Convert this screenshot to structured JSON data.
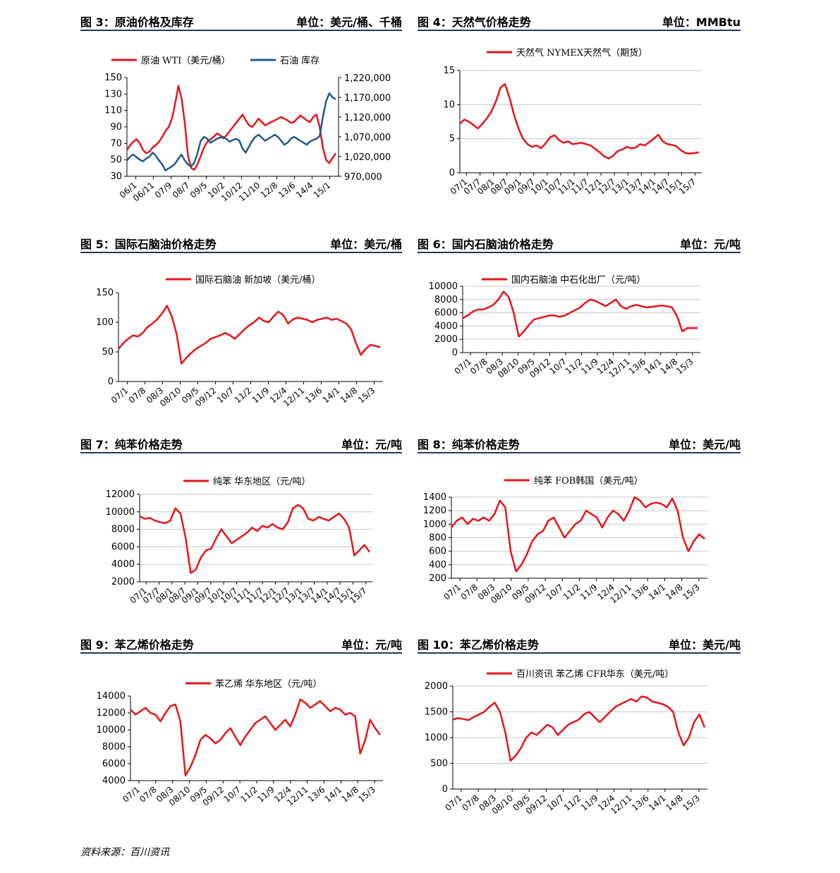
{
  "source": "资料来源：百川资讯",
  "colors": {
    "red": "#e8141a",
    "blue": "#1f5a8a",
    "grid": "#c8c8c8",
    "rule": "#1f3b5a"
  },
  "charts": [
    {
      "id": "c3",
      "fig": "图 3：原油价格及库存",
      "unit": "单位：美元/桶、千桶",
      "chart_data": {
        "type": "line",
        "legend": [
          "原油 WTI（美元/桶）",
          "石油 库存"
        ],
        "left_axis": {
          "min": 30,
          "max": 150,
          "ticks": [
            "30",
            "50",
            "70",
            "90",
            "110",
            "130",
            "150"
          ]
        },
        "right_axis": {
          "min": 970000,
          "max": 1220000,
          "ticks": [
            "970,000",
            "1,020,000",
            "1,070,000",
            "1,120,000",
            "1,170,000",
            "1,220,000"
          ]
        },
        "x_ticks": [
          "06/1",
          "06/11",
          "07/9",
          "08/7",
          "09/5",
          "10/2",
          "10/12",
          "11/10",
          "12/8",
          "13/6",
          "14/4",
          "15/1"
        ],
        "series": [
          {
            "name": "原油 WTI",
            "color": "red",
            "axis": "left",
            "values": [
              62,
              68,
              72,
              75,
              70,
              62,
              58,
              60,
              65,
              68,
              72,
              78,
              85,
              90,
              100,
              118,
              140,
              125,
              95,
              55,
              40,
              38,
              45,
              55,
              65,
              72,
              75,
              78,
              82,
              80,
              76,
              80,
              85,
              90,
              95,
              100,
              105,
              98,
              92,
              90,
              95,
              100,
              96,
              92,
              94,
              96,
              98,
              100,
              102,
              100,
              98,
              95,
              96,
              100,
              104,
              101,
              98,
              96,
              102,
              105,
              90,
              65,
              50,
              46,
              52,
              58
            ]
          },
          {
            "name": "石油 库存",
            "color": "blue",
            "axis": "right",
            "values": [
              1010000,
              1020000,
              1025000,
              1018000,
              1012000,
              1008000,
              1015000,
              1020000,
              1030000,
              1022000,
              1010000,
              1000000,
              985000,
              990000,
              995000,
              1002000,
              1015000,
              1025000,
              1010000,
              1000000,
              995000,
              1005000,
              1030000,
              1060000,
              1070000,
              1065000,
              1055000,
              1060000,
              1065000,
              1068000,
              1070000,
              1064000,
              1058000,
              1062000,
              1065000,
              1060000,
              1040000,
              1030000,
              1045000,
              1060000,
              1070000,
              1075000,
              1068000,
              1060000,
              1065000,
              1070000,
              1075000,
              1070000,
              1060000,
              1050000,
              1055000,
              1065000,
              1070000,
              1065000,
              1060000,
              1055000,
              1050000,
              1058000,
              1062000,
              1065000,
              1072000,
              1120000,
              1160000,
              1180000,
              1170000,
              1165000
            ]
          }
        ]
      }
    },
    {
      "id": "c4",
      "fig": "图 4：天然气价格走势",
      "unit": "单位：MMBtu",
      "chart_data": {
        "type": "line",
        "legend": [
          "天然气 NYMEX天然气（期货）"
        ],
        "left_axis": {
          "min": 0,
          "max": 15,
          "ticks": [
            "0",
            "5",
            "10",
            "15"
          ]
        },
        "x_ticks": [
          "07/1",
          "07/7",
          "08/1",
          "08/7",
          "09/1",
          "09/7",
          "10/1",
          "10/7",
          "11/1",
          "11/7",
          "12/1",
          "12/7",
          "13/1",
          "13/7",
          "14/1",
          "14/7",
          "15/1",
          "15/7"
        ],
        "series": [
          {
            "name": "天然气",
            "color": "red",
            "axis": "left",
            "values": [
              7.2,
              7.8,
              7.5,
              7.0,
              6.5,
              7.2,
              8.0,
              9.0,
              10.5,
              12.5,
              13.0,
              11.0,
              8.5,
              6.5,
              5.0,
              4.2,
              3.8,
              4.0,
              3.6,
              4.3,
              5.2,
              5.5,
              4.8,
              4.4,
              4.6,
              4.2,
              4.3,
              4.4,
              4.2,
              4.0,
              3.5,
              3.0,
              2.4,
              2.1,
              2.5,
              3.2,
              3.4,
              3.8,
              3.6,
              3.7,
              4.2,
              4.0,
              4.5,
              5.0,
              5.6,
              4.6,
              4.2,
              4.1,
              3.9,
              3.3,
              2.9,
              2.8,
              2.9,
              3.0
            ]
          }
        ]
      }
    },
    {
      "id": "c5",
      "fig": "图 5：国际石脑油价格走势",
      "unit": "单位：美元/桶",
      "chart_data": {
        "type": "line",
        "legend": [
          "国际石脑油 新加坡（美元/桶）"
        ],
        "left_axis": {
          "min": 0,
          "max": 150,
          "ticks": [
            "0",
            "50",
            "100",
            "150"
          ]
        },
        "x_ticks": [
          "07/1",
          "07/8",
          "08/3",
          "08/10",
          "09/5",
          "09/12",
          "10/7",
          "11/2",
          "11/9",
          "12/4",
          "12/11",
          "13/6",
          "14/1",
          "14/8",
          "15/3"
        ],
        "series": [
          {
            "name": "国际石脑油",
            "color": "red",
            "axis": "left",
            "values": [
              55,
              65,
              72,
              78,
              76,
              82,
              92,
              98,
              105,
              115,
              128,
              110,
              80,
              30,
              40,
              48,
              55,
              60,
              65,
              72,
              75,
              78,
              82,
              78,
              72,
              80,
              88,
              95,
              100,
              108,
              102,
              100,
              110,
              118,
              112,
              98,
              105,
              108,
              106,
              104,
              100,
              104,
              106,
              108,
              104,
              106,
              102,
              98,
              88,
              65,
              45,
              55,
              62,
              60,
              58
            ]
          }
        ]
      }
    },
    {
      "id": "c6",
      "fig": "图 6：国内石脑油价格走势",
      "unit": "单位：元/吨",
      "chart_data": {
        "type": "line",
        "legend": [
          "国内石脑油 中石化出厂（元/吨）"
        ],
        "left_axis": {
          "min": 0,
          "max": 10000,
          "ticks": [
            "0",
            "2000",
            "4000",
            "6000",
            "8000",
            "10000"
          ]
        },
        "x_ticks": [
          "07/1",
          "07/8",
          "08/3",
          "08/10",
          "09/5",
          "09/12",
          "10/7",
          "11/2",
          "11/9",
          "12/4",
          "12/11",
          "13/6",
          "14/1",
          "14/8",
          "15/3"
        ],
        "series": [
          {
            "name": "国内石脑油",
            "color": "red",
            "axis": "left",
            "values": [
              5200,
              5600,
              6200,
              6500,
              6500,
              6800,
              7200,
              8000,
              9200,
              8400,
              6000,
              2400,
              3200,
              4200,
              5000,
              5200,
              5400,
              5600,
              5600,
              5400,
              5600,
              6000,
              6400,
              6800,
              7500,
              8000,
              7800,
              7400,
              7000,
              7500,
              8000,
              7000,
              6600,
              7000,
              7200,
              7000,
              6800,
              6900,
              7000,
              7100,
              7000,
              6800,
              5500,
              3200,
              3700,
              3700,
              3700
            ]
          }
        ]
      }
    },
    {
      "id": "c7",
      "fig": "图 7：纯苯价格走势",
      "unit": "单位：元/吨",
      "chart_data": {
        "type": "line",
        "legend": [
          "纯苯 华东地区（元/吨）"
        ],
        "left_axis": {
          "min": 2000,
          "max": 12000,
          "ticks": [
            "2000",
            "4000",
            "6000",
            "8000",
            "10000",
            "12000"
          ]
        },
        "x_ticks": [
          "07/1",
          "07/7",
          "08/1",
          "08/7",
          "09/1",
          "09/7",
          "10/1",
          "10/7",
          "11/1",
          "11/7",
          "12/1",
          "12/7",
          "13/1",
          "13/7",
          "14/1",
          "14/7",
          "15/1",
          "15/7"
        ],
        "series": [
          {
            "name": "纯苯",
            "color": "red",
            "axis": "left",
            "values": [
              9500,
              9200,
              9300,
              9000,
              8800,
              8700,
              9000,
              10400,
              9800,
              7000,
              3000,
              3400,
              4800,
              5600,
              5800,
              7000,
              8000,
              7200,
              6400,
              6800,
              7200,
              7600,
              8200,
              7800,
              8400,
              8200,
              8600,
              8200,
              8000,
              8800,
              10400,
              10800,
              10400,
              9200,
              9000,
              9400,
              9200,
              9000,
              9400,
              9800,
              9200,
              8200,
              5000,
              5600,
              6200,
              5400
            ]
          }
        ]
      }
    },
    {
      "id": "c8",
      "fig": "图 8：纯苯价格走势",
      "unit": "单位：美元/吨",
      "chart_data": {
        "type": "line",
        "legend": [
          "纯苯 FOB韩国（美元/吨）"
        ],
        "left_axis": {
          "min": 200,
          "max": 1400,
          "ticks": [
            "200",
            "400",
            "600",
            "800",
            "1000",
            "1200",
            "1400"
          ]
        },
        "x_ticks": [
          "07/1",
          "07/8",
          "08/3",
          "08/10",
          "09/5",
          "09/12",
          "10/7",
          "11/2",
          "11/9",
          "12/4",
          "12/11",
          "13/6",
          "14/1",
          "14/8",
          "15/3"
        ],
        "series": [
          {
            "name": "纯苯 FOB",
            "color": "red",
            "axis": "left",
            "values": [
              950,
              1050,
              1100,
              1000,
              1080,
              1050,
              1100,
              1050,
              1150,
              1350,
              1250,
              600,
              300,
              400,
              550,
              750,
              850,
              900,
              1050,
              1100,
              950,
              800,
              900,
              1000,
              1050,
              1200,
              1150,
              1100,
              950,
              1100,
              1200,
              1150,
              1050,
              1200,
              1400,
              1350,
              1250,
              1300,
              1320,
              1300,
              1250,
              1380,
              1200,
              800,
              600,
              750,
              850,
              780
            ]
          }
        ]
      }
    },
    {
      "id": "c9",
      "fig": "图 9：苯乙烯价格走势",
      "unit": "单位：元/吨",
      "chart_data": {
        "type": "line",
        "legend": [
          "苯乙烯 华东地区（元/吨）"
        ],
        "left_axis": {
          "min": 4000,
          "max": 14000,
          "ticks": [
            "4000",
            "6000",
            "8000",
            "10000",
            "12000",
            "14000"
          ]
        },
        "x_ticks": [
          "07/1",
          "07/8",
          "08/3",
          "08/10",
          "09/5",
          "09/12",
          "10/7",
          "11/2",
          "11/9",
          "12/4",
          "12/11",
          "13/6",
          "14/1",
          "14/8",
          "15/3"
        ],
        "series": [
          {
            "name": "苯乙烯",
            "color": "red",
            "axis": "left",
            "values": [
              12400,
              11800,
              12200,
              12600,
              12000,
              11800,
              11000,
              12000,
              12800,
              13000,
              11000,
              4600,
              5600,
              7000,
              8800,
              9400,
              9000,
              8400,
              8800,
              9600,
              10200,
              9200,
              8200,
              9200,
              10000,
              10800,
              11200,
              11600,
              10800,
              10000,
              10600,
              11200,
              10400,
              11800,
              13600,
              13200,
              12600,
              13000,
              13400,
              12800,
              12200,
              12600,
              12400,
              11800,
              12000,
              11600,
              7200,
              8800,
              11200,
              10200,
              9400
            ]
          }
        ]
      }
    },
    {
      "id": "c10",
      "fig": "图 10：苯乙烯价格走势",
      "unit": "单位：美元/吨",
      "chart_data": {
        "type": "line",
        "legend": [
          "百川资讯 苯乙烯 CFR华东（美元/吨）"
        ],
        "left_axis": {
          "min": 0,
          "max": 2000,
          "ticks": [
            "0",
            "500",
            "1000",
            "1500",
            "2000"
          ]
        },
        "x_ticks": [
          "07/1",
          "07/8",
          "08/3",
          "08/10",
          "09/5",
          "09/12",
          "10/7",
          "11/2",
          "11/9",
          "12/4",
          "12/11",
          "13/6",
          "14/1",
          "14/8",
          "15/3"
        ],
        "series": [
          {
            "name": "苯乙烯 CFR",
            "color": "red",
            "axis": "left",
            "values": [
              1350,
              1380,
              1360,
              1340,
              1400,
              1450,
              1500,
              1600,
              1680,
              1500,
              1100,
              550,
              650,
              800,
              1000,
              1100,
              1050,
              1150,
              1250,
              1200,
              1050,
              1150,
              1250,
              1300,
              1350,
              1450,
              1500,
              1400,
              1300,
              1400,
              1500,
              1600,
              1650,
              1700,
              1750,
              1700,
              1800,
              1780,
              1700,
              1680,
              1650,
              1600,
              1500,
              1100,
              850,
              1000,
              1300,
              1450,
              1200
            ]
          }
        ]
      }
    }
  ]
}
